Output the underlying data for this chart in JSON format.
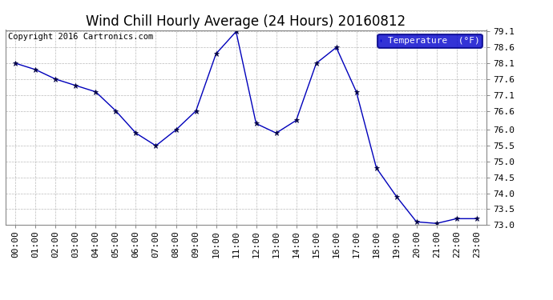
{
  "title": "Wind Chill Hourly Average (24 Hours) 20160812",
  "copyright": "Copyright 2016 Cartronics.com",
  "legend_label": "Temperature  (°F)",
  "hours": [
    "00:00",
    "01:00",
    "02:00",
    "03:00",
    "04:00",
    "05:00",
    "06:00",
    "07:00",
    "08:00",
    "09:00",
    "10:00",
    "11:00",
    "12:00",
    "13:00",
    "14:00",
    "15:00",
    "16:00",
    "17:00",
    "18:00",
    "19:00",
    "20:00",
    "21:00",
    "22:00",
    "23:00"
  ],
  "values": [
    78.1,
    77.9,
    77.6,
    77.4,
    77.2,
    76.6,
    75.9,
    75.5,
    76.0,
    76.6,
    78.4,
    79.1,
    76.2,
    75.9,
    76.3,
    78.1,
    78.6,
    77.2,
    74.8,
    73.9,
    73.1,
    73.05,
    73.2,
    73.2
  ],
  "ylim": [
    73.0,
    79.1
  ],
  "ytick_vals": [
    73.0,
    73.5,
    74.0,
    74.5,
    75.0,
    75.5,
    76.0,
    76.6,
    77.1,
    77.6,
    78.1,
    78.6,
    79.1
  ],
  "ytick_labels": [
    "73.0",
    "73.5",
    "74.0",
    "74.5",
    "75.0",
    "75.5",
    "76.0",
    "76.6",
    "77.1",
    "77.6",
    "78.1",
    "78.6",
    "79.1"
  ],
  "line_color": "#0000bb",
  "marker_color": "#000044",
  "bg_color": "#ffffff",
  "plot_bg_color": "#ffffff",
  "legend_bg": "#0000cc",
  "legend_text_color": "#ffffff",
  "title_fontsize": 12,
  "copyright_fontsize": 7.5,
  "tick_fontsize": 8,
  "grid_color": "#aaaaaa",
  "border_color": "#888888"
}
